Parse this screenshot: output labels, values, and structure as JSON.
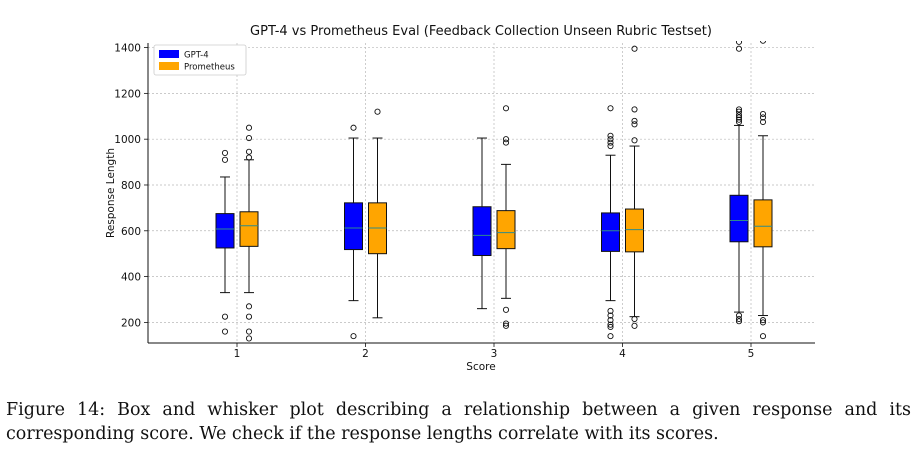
{
  "chart_data": {
    "type": "box",
    "title": "GPT-4 vs Prometheus Eval (Feedback Collection Unseen Rubric Testset)",
    "xlabel": "Score",
    "ylabel": "Response Length",
    "categories": [
      "1",
      "2",
      "3",
      "4",
      "5"
    ],
    "ylim": [
      110,
      1420
    ],
    "yticks": [
      200,
      400,
      600,
      800,
      1000,
      1200,
      1400
    ],
    "grid": true,
    "legend_position": "top-left",
    "series": [
      {
        "name": "GPT-4",
        "color": "#0000ff",
        "boxes": [
          {
            "whislo": 330,
            "q1": 525,
            "med": 608,
            "q3": 675,
            "whishi": 835,
            "fliers": [
              160,
              225,
              910,
              940
            ]
          },
          {
            "whislo": 295,
            "q1": 518,
            "med": 612,
            "q3": 722,
            "whishi": 1005,
            "fliers": [
              140,
              1050
            ]
          },
          {
            "whislo": 260,
            "q1": 492,
            "med": 580,
            "q3": 705,
            "whishi": 1005,
            "fliers": []
          },
          {
            "whislo": 295,
            "q1": 510,
            "med": 600,
            "q3": 678,
            "whishi": 930,
            "fliers": [
              140,
              180,
              190,
              210,
              230,
              250,
              970,
              985,
              1000,
              1015,
              1135
            ]
          },
          {
            "whislo": 245,
            "q1": 552,
            "med": 645,
            "q3": 755,
            "whishi": 1060,
            "fliers": [
              205,
              215,
              230,
              1075,
              1085,
              1095,
              1105,
              1120,
              1130,
              1395,
              1425
            ]
          }
        ]
      },
      {
        "name": "Prometheus",
        "color": "#ffa500",
        "boxes": [
          {
            "whislo": 330,
            "q1": 532,
            "med": 622,
            "q3": 683,
            "whishi": 910,
            "fliers": [
              130,
              160,
              225,
              270,
              920,
              945,
              1005,
              1050
            ]
          },
          {
            "whislo": 220,
            "q1": 500,
            "med": 612,
            "q3": 722,
            "whishi": 1005,
            "fliers": [
              1120
            ]
          },
          {
            "whislo": 305,
            "q1": 522,
            "med": 592,
            "q3": 688,
            "whishi": 890,
            "fliers": [
              185,
              195,
              255,
              985,
              1000,
              1135
            ]
          },
          {
            "whislo": 225,
            "q1": 508,
            "med": 605,
            "q3": 695,
            "whishi": 970,
            "fliers": [
              185,
              215,
              995,
              1065,
              1080,
              1130,
              1395
            ]
          },
          {
            "whislo": 230,
            "q1": 530,
            "med": 620,
            "q3": 735,
            "whishi": 1015,
            "fliers": [
              140,
              200,
              210,
              1075,
              1095,
              1110,
              1430
            ]
          }
        ]
      }
    ]
  },
  "caption": "Figure 14: Box and whisker plot describing a relationship between a given response and its corresponding score. We check if the response lengths correlate with its scores."
}
